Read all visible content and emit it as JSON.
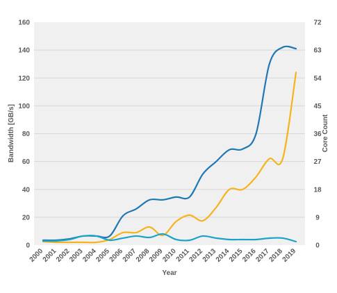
{
  "chart_data": {
    "type": "line",
    "title": "",
    "xlabel": "Year",
    "ylabel": "Bandwidth [GB/s]",
    "y2label": "Core Count",
    "grid": true,
    "background": "#f0f0f0",
    "categories": [
      "2000",
      "2001",
      "2002",
      "2003",
      "2004",
      "2005",
      "2006",
      "2007",
      "2008",
      "2009",
      "2010",
      "2011",
      "2012",
      "2013",
      "2014",
      "2015",
      "2016",
      "2017",
      "2018",
      "2019"
    ],
    "ylim": [
      0,
      160
    ],
    "yticks": [
      "0",
      "20",
      "40",
      "60",
      "80",
      "100",
      "120",
      "140",
      "160"
    ],
    "y2lim": [
      0,
      72
    ],
    "y2ticks": [
      "0",
      "9",
      "18",
      "27",
      "36",
      "45",
      "54",
      "63",
      "72"
    ],
    "series": [
      {
        "axis": "left",
        "color": "#1f77b4",
        "values": [
          3.5,
          3.5,
          4.5,
          6.5,
          6.5,
          6.5,
          21,
          26,
          32.5,
          32.5,
          34.5,
          34.5,
          51,
          60,
          68.5,
          69,
          80,
          130,
          142,
          141
        ]
      },
      {
        "axis": "left",
        "color": "#f5b41e",
        "values": [
          2.5,
          2,
          2,
          2,
          2,
          4,
          9,
          9,
          13,
          7,
          17,
          21.5,
          17.5,
          27,
          40,
          40,
          49,
          62,
          62,
          124
        ]
      },
      {
        "axis": "left",
        "color": "#1aa3c8",
        "values": [
          3,
          3,
          4,
          6.5,
          6.5,
          3.5,
          5,
          6.5,
          5.5,
          8,
          4,
          3.5,
          6.5,
          5,
          4,
          4,
          4,
          5,
          5,
          2.5
        ]
      }
    ]
  }
}
